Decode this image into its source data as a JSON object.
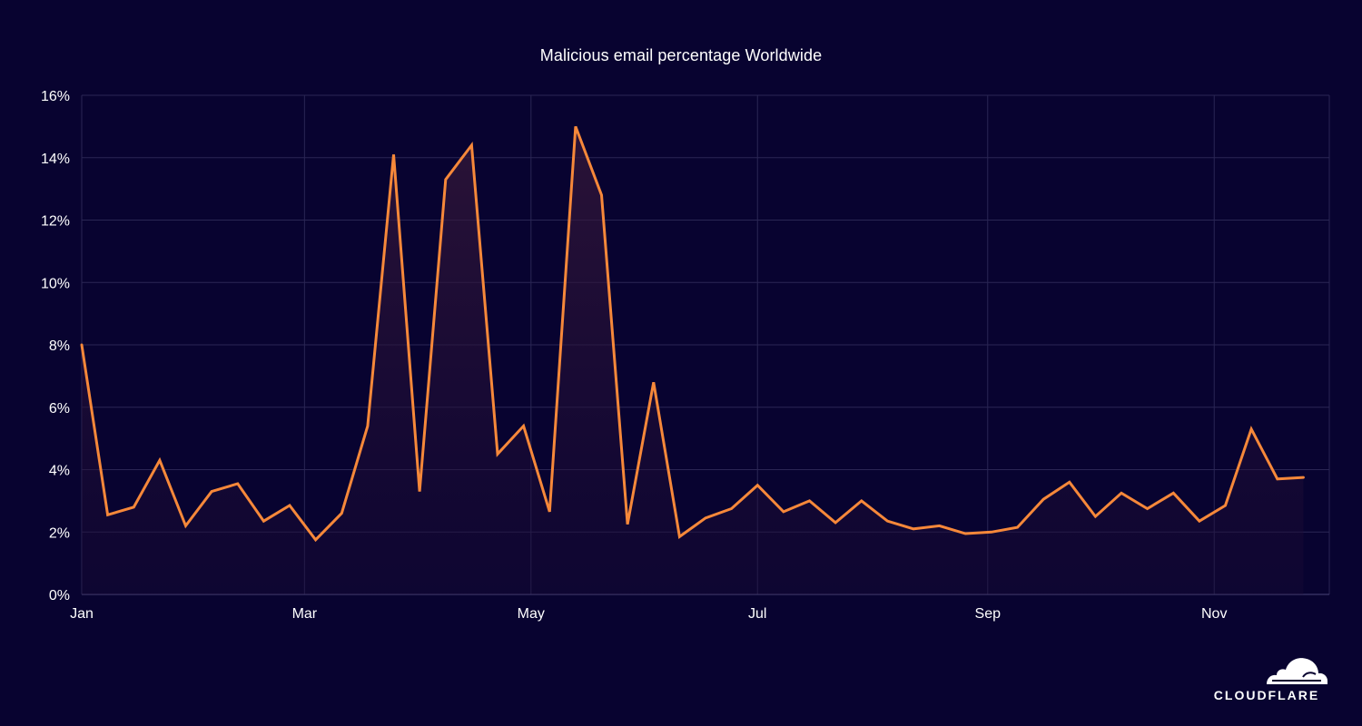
{
  "chart_data": {
    "type": "area",
    "title": "Malicious email percentage Worldwide",
    "xlabel": "",
    "ylabel": "",
    "ylim": [
      0,
      16
    ],
    "y_ticks": [
      0,
      2,
      4,
      6,
      8,
      10,
      12,
      14,
      16
    ],
    "y_tick_labels": [
      "0%",
      "2%",
      "4%",
      "6%",
      "8%",
      "10%",
      "12%",
      "14%",
      "16%"
    ],
    "x_tick_labels": [
      "Jan",
      "Mar",
      "May",
      "Jul",
      "Sep",
      "Nov"
    ],
    "x_tick_dates": [
      "2024-01-01",
      "2024-03-01",
      "2024-05-01",
      "2024-07-01",
      "2024-09-01",
      "2024-11-01"
    ],
    "x_range": [
      "2024-01-01",
      "2024-12-02"
    ],
    "grid": true,
    "legend": "none",
    "line_color": "#f6883a",
    "series": [
      {
        "x": [
          "2024-01-01",
          "2024-01-08",
          "2024-01-15",
          "2024-01-22",
          "2024-01-29",
          "2024-02-05",
          "2024-02-12",
          "2024-02-19",
          "2024-02-26",
          "2024-03-04",
          "2024-03-11",
          "2024-03-18",
          "2024-03-25",
          "2024-04-01",
          "2024-04-08",
          "2024-04-15",
          "2024-04-22",
          "2024-04-29",
          "2024-05-06",
          "2024-05-13",
          "2024-05-20",
          "2024-05-27",
          "2024-06-03",
          "2024-06-10",
          "2024-06-17",
          "2024-06-24",
          "2024-07-01",
          "2024-07-08",
          "2024-07-15",
          "2024-07-22",
          "2024-07-29",
          "2024-08-05",
          "2024-08-12",
          "2024-08-19",
          "2024-08-26",
          "2024-09-02",
          "2024-09-09",
          "2024-09-16",
          "2024-09-23",
          "2024-09-30",
          "2024-10-07",
          "2024-10-14",
          "2024-10-21",
          "2024-10-28",
          "2024-11-04",
          "2024-11-11",
          "2024-11-18",
          "2024-11-25"
        ],
        "values": [
          8.0,
          2.55,
          2.8,
          4.3,
          2.2,
          3.3,
          3.55,
          2.35,
          2.85,
          1.75,
          2.6,
          5.4,
          14.1,
          3.3,
          13.3,
          14.4,
          4.5,
          5.4,
          2.65,
          15.0,
          12.8,
          2.25,
          6.8,
          1.85,
          2.45,
          2.75,
          3.5,
          2.65,
          3.0,
          2.3,
          3.0,
          2.35,
          2.1,
          2.2,
          1.95,
          2.0,
          2.15,
          3.05,
          3.6,
          2.5,
          3.25,
          2.75,
          3.25,
          2.35,
          2.85,
          5.3,
          3.7,
          3.75
        ]
      }
    ]
  },
  "brand": {
    "logo_text": "CLOUDFLARE"
  },
  "colors": {
    "background": "#080330",
    "line": "#f6883a",
    "grid": "#2a2654"
  }
}
